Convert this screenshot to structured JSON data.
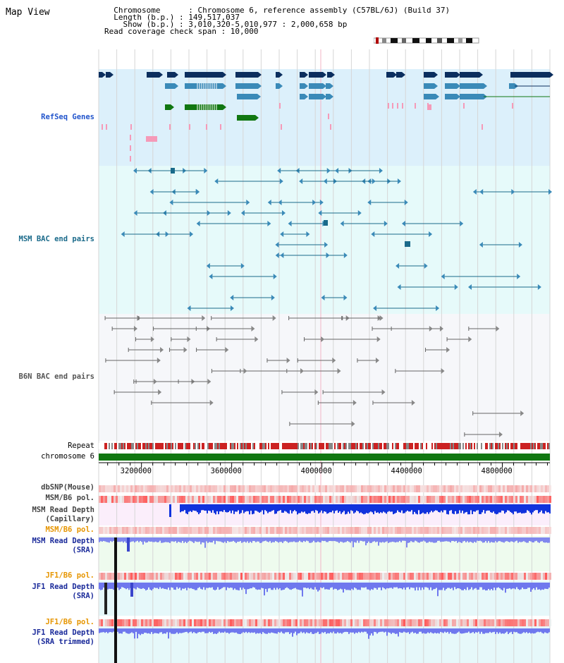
{
  "header": {
    "title": "Map View",
    "info_lines": [
      "  Chromosome      : Chromosome 6, reference assembly (C57BL/6J) (Build 37)",
      "  Length (b.p.) : 149,517,037",
      "    Show (b.p.) : 3,010,320-5,010,977 : 2,000,658 bp",
      "Read coverage check span : 10,000"
    ]
  },
  "colors": {
    "refseq_label": "#2255cc",
    "msm_bac_label": "#1a6a8a",
    "b6n_bac_label": "#555555",
    "pol_label": "#e69500",
    "depth_label": "#1a2a9a",
    "gene_dark": "#0b2e5e",
    "gene_mid": "#3a8ab8",
    "gene_green": "#117711",
    "chrom_green": "#117711"
  },
  "tracks": {
    "refseq": "RefSeq Genes",
    "msm_bac": "MSM BAC end pairs",
    "b6n_bac": "B6N BAC end pairs",
    "repeat": "Repeat",
    "chromosome": "chromosome 6",
    "dbsnp": "dbSNP(Mouse)",
    "msm_b6_pol_1": "MSM/B6 pol.",
    "msm_depth_cap": "MSM Read Depth\n(Capillary)",
    "msm_b6_pol_2": "MSM/B6 pol.",
    "msm_depth_sra": "MSM Read Depth\n(SRA)",
    "jf1_b6_pol_1": "JF1/B6 pol.",
    "jf1_depth_sra": "JF1 Read Depth\n(SRA)",
    "jf1_b6_pol_2": "JF1/B6 pol.",
    "jf1_depth_trim": "JF1 Read Depth\n(SRA trimmed)"
  },
  "axis": {
    "ticks": [
      "3200000",
      "3600000",
      "4000000",
      "4400000",
      "4800000"
    ],
    "tick_values": [
      3200000,
      3600000,
      4000000,
      4400000,
      4800000
    ],
    "range": [
      3010320,
      5010977
    ]
  }
}
